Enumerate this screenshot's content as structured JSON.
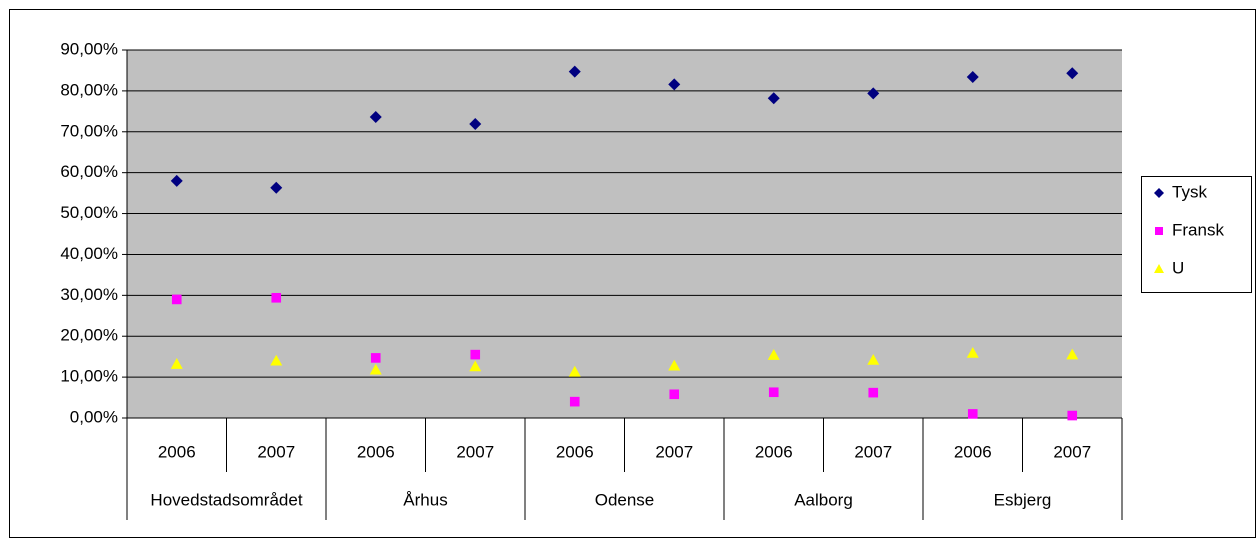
{
  "chart_data": {
    "type": "scatter",
    "categories": [
      "2006",
      "2007",
      "2006",
      "2007",
      "2006",
      "2007",
      "2006",
      "2007",
      "2006",
      "2007"
    ],
    "groups": [
      "Hovedstadsområdet",
      "Århus",
      "Odense",
      "Aalborg",
      "Esbjerg"
    ],
    "series": [
      {
        "name": "Tysk",
        "color": "#000080",
        "marker": "diamond",
        "values": [
          58.0,
          56.3,
          73.6,
          71.9,
          84.7,
          81.6,
          78.2,
          79.4,
          83.4,
          84.3
        ]
      },
      {
        "name": "Fransk",
        "color": "#ff00ff",
        "marker": "square",
        "values": [
          29.0,
          29.4,
          14.7,
          15.5,
          4.0,
          5.8,
          6.3,
          6.2,
          1.0,
          0.6
        ]
      },
      {
        "name": "U",
        "color": "#ffff00",
        "marker": "triangle",
        "values": [
          13.2,
          14.0,
          11.8,
          12.6,
          11.3,
          12.8,
          15.4,
          14.2,
          15.9,
          15.5
        ]
      }
    ],
    "ylim": [
      0,
      90
    ],
    "yticks": [
      {
        "value": 0,
        "label": "0,00%"
      },
      {
        "value": 10,
        "label": "10,00%"
      },
      {
        "value": 20,
        "label": "20,00%"
      },
      {
        "value": 30,
        "label": "30,00%"
      },
      {
        "value": 40,
        "label": "40,00%"
      },
      {
        "value": 50,
        "label": "50,00%"
      },
      {
        "value": 60,
        "label": "60,00%"
      },
      {
        "value": 70,
        "label": "70,00%"
      },
      {
        "value": 80,
        "label": "80,00%"
      },
      {
        "value": 90,
        "label": "90,00%"
      }
    ],
    "grid": true,
    "legend": "right"
  }
}
